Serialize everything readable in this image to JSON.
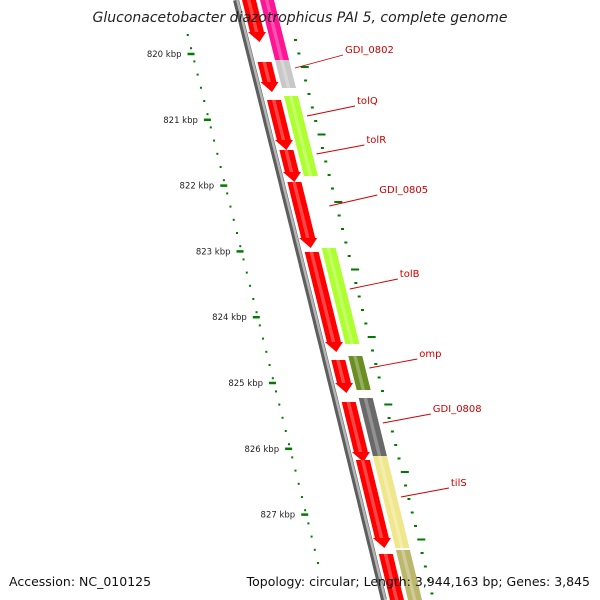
{
  "header": {
    "title": "Gluconacetobacter diazotrophicus PAI 5, complete genome"
  },
  "footer": {
    "accession": "Accession: NC_010125",
    "summary": "Topology: circular; Length: 3,944,163 bp; Genes: 3,845"
  },
  "colors": {
    "backbone": "#8a8a8a",
    "cds": "#ff0000",
    "tick": "#007a00",
    "label": "#cc0000",
    "leader": "#cc0000"
  },
  "ticks": [
    "820 kbp",
    "821 kbp",
    "822 kbp",
    "823 kbp",
    "824 kbp",
    "825 kbp",
    "826 kbp",
    "827 kbp"
  ],
  "genes": [
    {
      "label": "GDI_0802",
      "color": "#c8c8c8"
    },
    {
      "label": "tolQ",
      "color": "#adff2f"
    },
    {
      "label": "tolR",
      "color": "#adff2f"
    },
    {
      "label": "GDI_0805",
      "color": "#ff0000"
    },
    {
      "label": "tolB",
      "color": "#adff2f"
    },
    {
      "label": "omp",
      "color": "#6b8e23"
    },
    {
      "label": "GDI_0808",
      "color": "#696969"
    },
    {
      "label": "tilS",
      "color": "#f0e68c"
    }
  ]
}
